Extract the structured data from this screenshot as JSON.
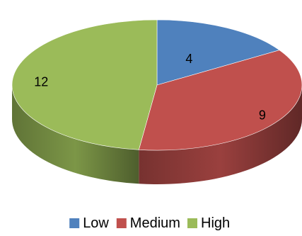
{
  "chart_data": {
    "type": "pie",
    "style": "3d",
    "categories": [
      "Low",
      "Medium",
      "High"
    ],
    "values": [
      4,
      9,
      12
    ],
    "colors": [
      "#4f81bd",
      "#c0504d",
      "#9bbb59"
    ],
    "data_labels": [
      "4",
      "9",
      "12"
    ],
    "legend_position": "bottom",
    "title": ""
  }
}
